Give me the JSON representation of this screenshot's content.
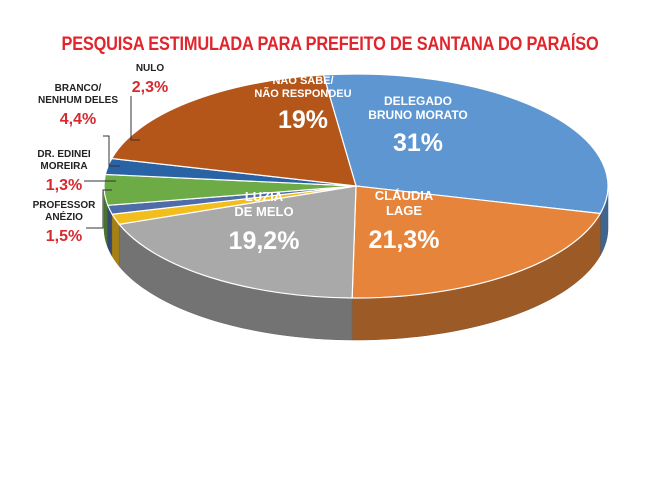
{
  "chart_data": {
    "type": "pie",
    "title": "PESQUISA ESTIMULADA PARA PREFEITO DE SANTANA DO PARAÍSO",
    "slices": [
      {
        "name_lines": [
          "DELEGADO",
          "BRUNO MORATO"
        ],
        "label": "31%",
        "value": 31.0,
        "color": "#5d96d1"
      },
      {
        "name_lines": [
          "CLÁUDIA",
          "LAGE"
        ],
        "label": "21,3%",
        "value": 21.3,
        "color": "#e5843a"
      },
      {
        "name_lines": [
          "LUZIA",
          "DE MELO"
        ],
        "label": "19,2%",
        "value": 19.2,
        "color": "#a9a9a9"
      },
      {
        "name_lines": [
          "PROFESSOR",
          "ANÉZIO"
        ],
        "label": "1,5%",
        "value": 1.5,
        "color": "#f2be1d"
      },
      {
        "name_lines": [
          "DR. EDINEI",
          "MOREIRA"
        ],
        "label": "1,3%",
        "value": 1.3,
        "color": "#4d6ca8"
      },
      {
        "name_lines": [
          "BRANCO/",
          "NENHUM DELES"
        ],
        "label": "4,4%",
        "value": 4.4,
        "color": "#6cab45"
      },
      {
        "name_lines": [
          "NULO"
        ],
        "label": "2,3%",
        "value": 2.3,
        "color": "#2a62a6"
      },
      {
        "name_lines": [
          "NÃO SABE/",
          "NÃO RESPONDEU"
        ],
        "label": "19%",
        "value": 19.0,
        "color": "#b4561a"
      }
    ]
  }
}
